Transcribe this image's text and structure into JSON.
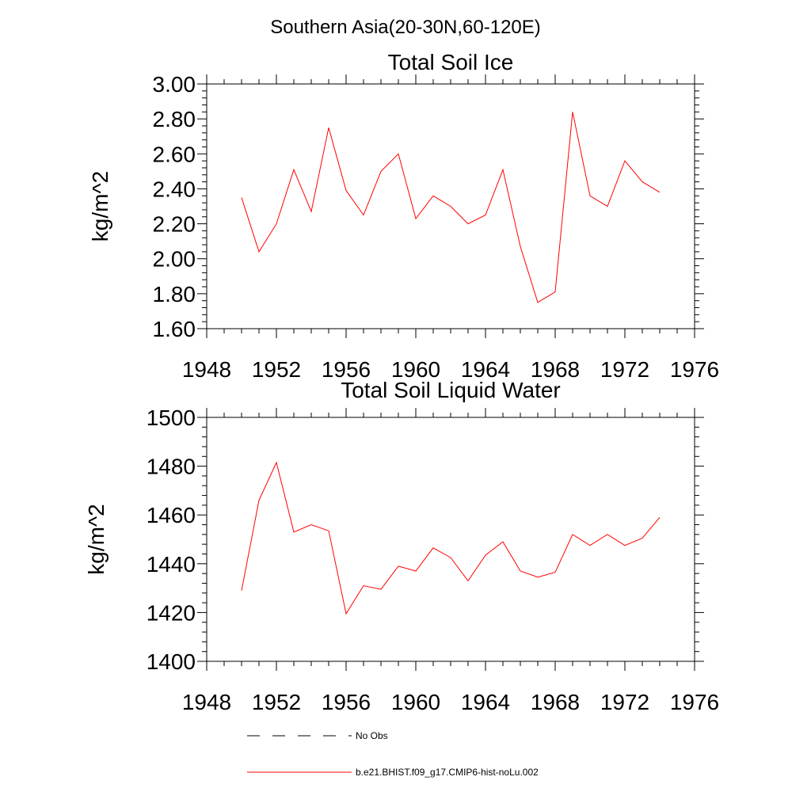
{
  "figure": {
    "suptitle": "Southern Asia(20-30N,60-120E)"
  },
  "chart_data": [
    {
      "type": "line",
      "title": "Total Soil Ice",
      "ylabel": "kg/m^2",
      "xlim": [
        1948,
        1976
      ],
      "ylim": [
        1.6,
        3.0
      ],
      "xticks": [
        1948,
        1952,
        1956,
        1960,
        1964,
        1968,
        1972,
        1976
      ],
      "xtick_labels": [
        "1948",
        "1952",
        "1956",
        "1960",
        "1964",
        "1968",
        "1972",
        "1976"
      ],
      "yticks": [
        1.6,
        1.8,
        2.0,
        2.2,
        2.4,
        2.6,
        2.8,
        3.0
      ],
      "ytick_labels": [
        "1.60",
        "1.80",
        "2.00",
        "2.20",
        "2.40",
        "2.60",
        "2.80",
        "3.00"
      ],
      "grid": false,
      "x": [
        1950,
        1951,
        1952,
        1953,
        1954,
        1955,
        1956,
        1957,
        1958,
        1959,
        1960,
        1961,
        1962,
        1963,
        1964,
        1965,
        1966,
        1967,
        1968,
        1969,
        1970,
        1971,
        1972,
        1973,
        1974
      ],
      "series": [
        {
          "color": "#ff0000",
          "values": [
            2.35,
            2.04,
            2.2,
            2.51,
            2.27,
            2.75,
            2.39,
            2.25,
            2.5,
            2.6,
            2.23,
            2.36,
            2.3,
            2.2,
            2.25,
            2.51,
            2.07,
            1.75,
            1.81,
            2.84,
            2.36,
            2.3,
            2.56,
            2.44,
            2.38
          ]
        }
      ]
    },
    {
      "type": "line",
      "title": "Total Soil Liquid Water",
      "ylabel": "kg/m^2",
      "xlim": [
        1948,
        1976
      ],
      "ylim": [
        1400,
        1500
      ],
      "xticks": [
        1948,
        1952,
        1956,
        1960,
        1964,
        1968,
        1972,
        1976
      ],
      "xtick_labels": [
        "1948",
        "1952",
        "1956",
        "1960",
        "1964",
        "1968",
        "1972",
        "1976"
      ],
      "yticks": [
        1400,
        1420,
        1440,
        1460,
        1480,
        1500
      ],
      "ytick_labels": [
        "1400",
        "1420",
        "1440",
        "1460",
        "1480",
        "1500"
      ],
      "grid": false,
      "x": [
        1950,
        1951,
        1952,
        1953,
        1954,
        1955,
        1956,
        1957,
        1958,
        1959,
        1960,
        1961,
        1962,
        1963,
        1964,
        1965,
        1966,
        1967,
        1968,
        1969,
        1970,
        1971,
        1972,
        1973,
        1974
      ],
      "series": [
        {
          "color": "#ff0000",
          "values": [
            1429.0,
            1466.0,
            1481.5,
            1453.0,
            1456.0,
            1453.5,
            1419.5,
            1431.0,
            1429.5,
            1439.0,
            1437.0,
            1446.5,
            1442.5,
            1433.0,
            1443.5,
            1449.0,
            1437.0,
            1434.5,
            1436.5,
            1452.0,
            1447.5,
            1452.0,
            1447.5,
            1450.5,
            1459.0
          ]
        }
      ]
    }
  ],
  "legend": {
    "items": [
      {
        "label": "No Obs",
        "style": "dashed",
        "color": "#000000"
      },
      {
        "label": "b.e21.BHIST.f09_g17.CMIP6-hist-noLu.002",
        "style": "solid",
        "color": "#ff0000"
      }
    ]
  }
}
